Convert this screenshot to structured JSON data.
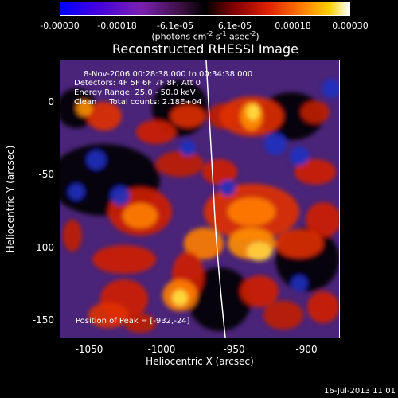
{
  "colorbar": {
    "ticks": [
      "-0.00030",
      "-0.00018",
      "-6.1e-05",
      "6.1e-05",
      "0.00018",
      "0.00030"
    ],
    "units": {
      "prefix": "(photons cm",
      "e1": "-2",
      "mid1": " s",
      "e2": "-1",
      "mid2": " asec",
      "e3": "-2",
      "suffix": ")"
    },
    "range": [
      -0.0003,
      0.0003
    ]
  },
  "title": "Reconstructed RHESSI Image",
  "info": {
    "time": "8-Nov-2006 00:28:38.000 to 00:34:38.000",
    "detectors": "Detectors: 4F 5F 6F 7F 8F, Att 0",
    "energy": "Energy Range: 25.0 - 50.0 keV",
    "clean": "Clean     Total counts: 2.18E+04",
    "peak": "Position of Peak = [-932,-24]"
  },
  "axes": {
    "xlabel": "Heliocentric X (arcsec)",
    "ylabel": "Heliocentric Y (arcsec)",
    "xticks": [
      "-1050",
      "-1000",
      "-950",
      "-900"
    ],
    "yticks": [
      "0",
      "-50",
      "-100",
      "-150"
    ],
    "xlim": [
      -1066,
      -874
    ],
    "ylim": [
      -164,
      28
    ]
  },
  "footer": "16-Jul-2013 11:01"
}
